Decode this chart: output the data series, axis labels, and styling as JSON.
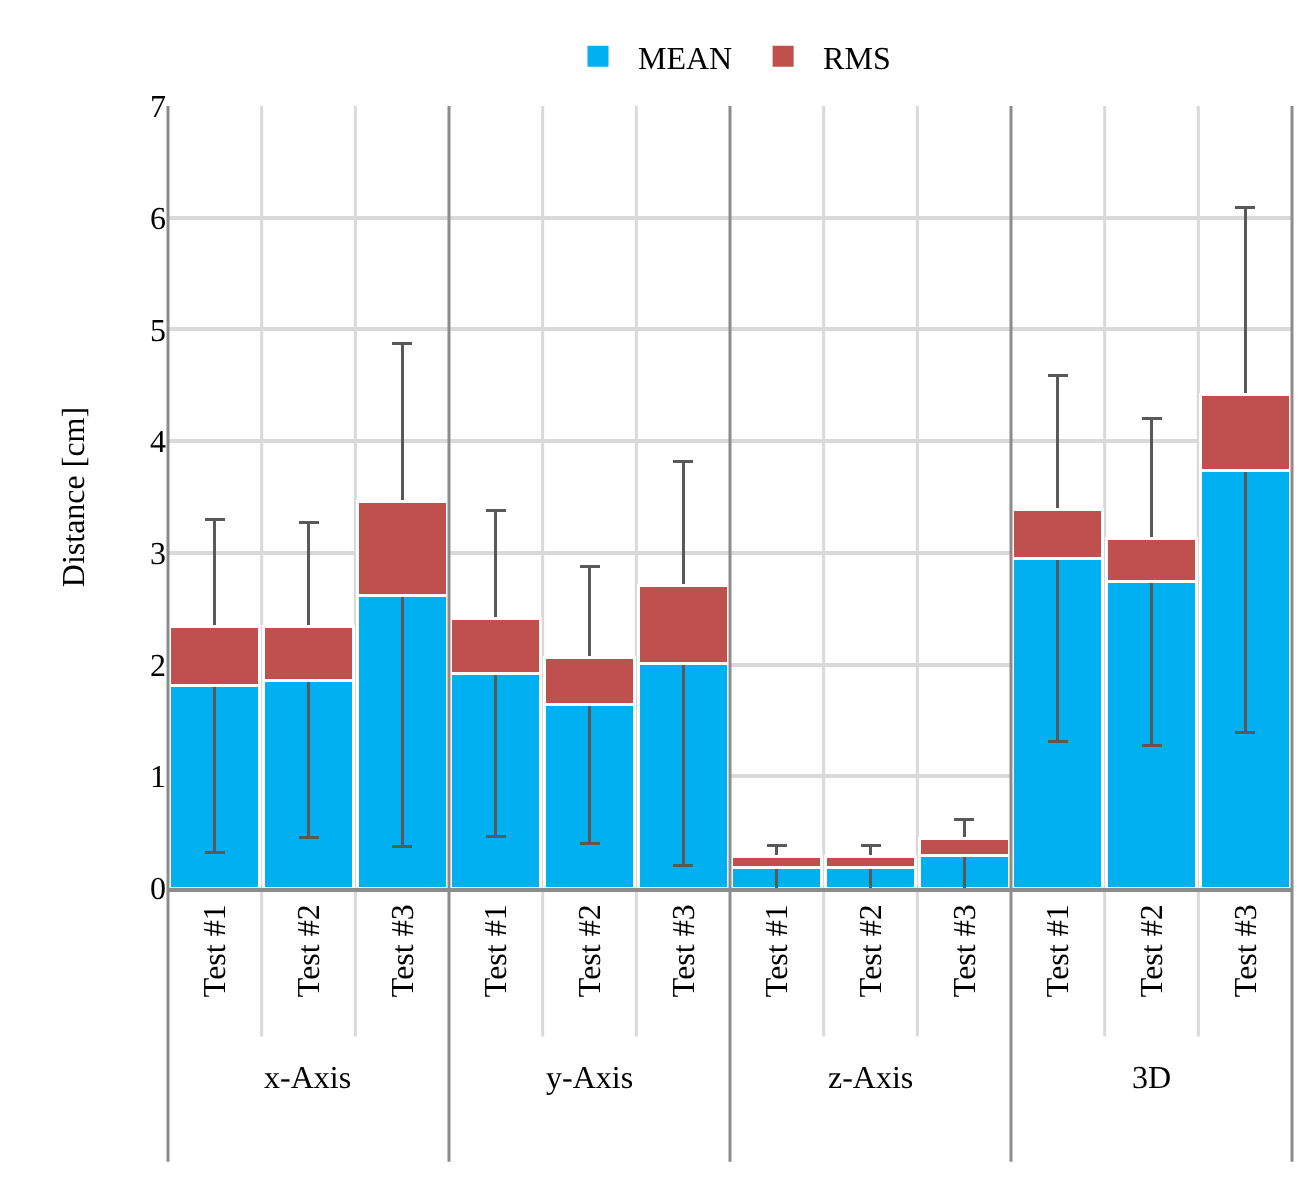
{
  "chart_data": {
    "type": "bar",
    "stacked": true,
    "ylabel": "Distance [cm]",
    "categories": [
      "Test #1",
      "Test #2",
      "Test #3",
      "Test #1",
      "Test #2",
      "Test #3",
      "Test #1",
      "Test #2",
      "Test #3",
      "Test #1",
      "Test #2",
      "Test #3"
    ],
    "annotations": [
      "x-Axis",
      "y-Axis",
      "z-Axis",
      "3D"
    ],
    "series": [
      {
        "name": "MEAN",
        "color": "#00b0f0",
        "values": [
          1.81,
          1.86,
          2.62,
          1.92,
          1.64,
          2.01,
          0.18,
          0.18,
          0.29,
          2.95,
          2.74,
          3.74
        ],
        "errors": [
          1.49,
          1.41,
          2.25,
          1.46,
          1.24,
          1.81,
          0.2,
          0.2,
          0.32,
          1.64,
          1.46,
          2.35
        ]
      },
      {
        "name": "RMS",
        "color": "#c0504d",
        "values": [
          0.53,
          0.48,
          0.84,
          0.49,
          0.42,
          0.7,
          0.1,
          0.1,
          0.15,
          0.44,
          0.39,
          0.68
        ]
      }
    ],
    "ylim": [
      0,
      7
    ],
    "yticks": [
      0,
      1,
      2,
      3,
      4,
      5,
      6,
      7
    ],
    "grid": true,
    "legend": "top"
  }
}
